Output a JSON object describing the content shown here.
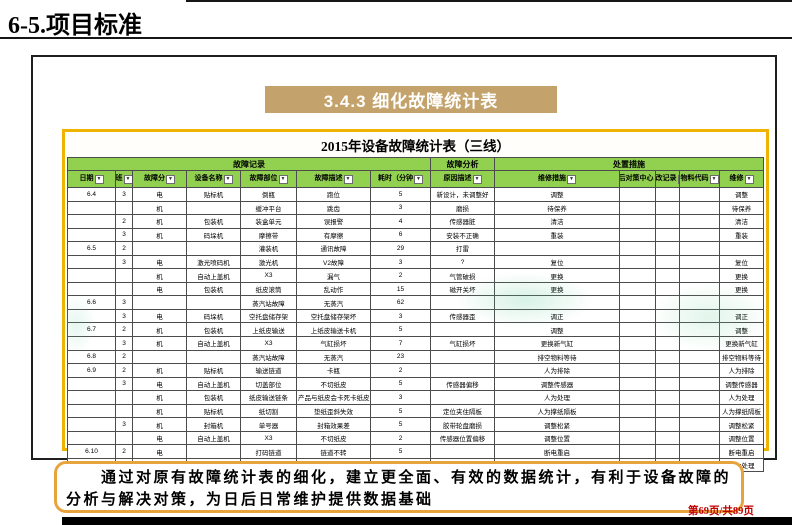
{
  "page_title": "6-5.项目标准",
  "banner": {
    "label": "3.4.3 细化故障统计表",
    "bg_color": "#c3a36b"
  },
  "colors": {
    "header_green": "#92d050",
    "table_border_gold": "#f0b400",
    "summary_border_orange": "#e8a43c",
    "page_num_red": "#c00000"
  },
  "icons": {
    "filter_dropdown": "▼"
  },
  "table": {
    "title": "2015年设备故障统计表（三线）",
    "group_headers": [
      {
        "label": "故障记录",
        "span": 7
      },
      {
        "label": "故障分析",
        "span": 1
      },
      {
        "label": "处置措施",
        "span": 5
      }
    ],
    "columns": [
      "日期",
      "班",
      "故障分",
      "设备名称",
      "故障部位",
      "故障描述",
      "耗时（分钟",
      "原因描述",
      "维修措施",
      "向后对策中心",
      "更改记录",
      "物料代码",
      "维修"
    ],
    "rows": [
      [
        "6.4",
        "3",
        "电",
        "贴标机",
        "倒瓶",
        "跑位",
        "5",
        "新设计，未调整好",
        "调整",
        "",
        "",
        "",
        "调整"
      ],
      [
        "",
        "",
        "机",
        "",
        "缓冲平台",
        "跳齿",
        "3",
        "磨损",
        "待保养",
        "",
        "",
        "",
        "待保养"
      ],
      [
        "",
        "2",
        "机",
        "包装机",
        "装盒单元",
        "误报警",
        "4",
        "传感器脏",
        "清洁",
        "",
        "",
        "",
        "清洁"
      ],
      [
        "",
        "3",
        "机",
        "码垛机",
        "摩擦带",
        "有摩擦",
        "6",
        "安装不正确",
        "重装",
        "",
        "",
        "",
        "重装"
      ],
      [
        "6.5",
        "2",
        "",
        "",
        "灌装机",
        "通讯故障",
        "29",
        "打雷",
        "",
        "",
        "",
        "",
        ""
      ],
      [
        "",
        "3",
        "电",
        "激光喷码机",
        "激光机",
        "V2故障",
        "3",
        "?",
        "复位",
        "",
        "",
        "",
        "复位"
      ],
      [
        "",
        "",
        "机",
        "自动上盖机",
        "X3",
        "漏气",
        "2",
        "气管破损",
        "更换",
        "",
        "",
        "",
        "更换"
      ],
      [
        "",
        "",
        "电",
        "包装机",
        "纸皮滚筒",
        "乱动作",
        "15",
        "磁开关坏",
        "更换",
        "",
        "",
        "",
        "更换"
      ],
      [
        "6.6",
        "3",
        "",
        "",
        "蒸汽站故障",
        "无蒸汽",
        "62",
        "",
        "",
        "",
        "",
        "",
        ""
      ],
      [
        "",
        "3",
        "电",
        "码垛机",
        "空托盘储存架",
        "空托盘储存架坏",
        "3",
        "传感器歪",
        "调正",
        "",
        "",
        "",
        "调正"
      ],
      [
        "6.7",
        "2",
        "机",
        "包装机",
        "上纸皮输送",
        "上纸皮输送卡机",
        "5",
        "",
        "调整",
        "",
        "",
        "",
        "调整"
      ],
      [
        "",
        "3",
        "机",
        "自动上盖机",
        "X3",
        "气缸损坏",
        "7",
        "气缸损坏",
        "更换新气缸",
        "",
        "",
        "",
        "更换新气缸"
      ],
      [
        "6.8",
        "2",
        "",
        "",
        "蒸汽站故障",
        "无蒸汽",
        "23",
        "",
        "排空物料等待",
        "",
        "",
        "",
        "排空物料等待"
      ],
      [
        "6.9",
        "2",
        "机",
        "贴标机",
        "输送链道",
        "卡瓶",
        "2",
        "",
        "人为排除",
        "",
        "",
        "",
        "人为排除"
      ],
      [
        "",
        "3",
        "电",
        "自动上盖机",
        "切盖部位",
        "不切纸皮",
        "5",
        "传感器偏移",
        "调整传感器",
        "",
        "",
        "",
        "调整传感器"
      ],
      [
        "",
        "",
        "机",
        "包装机",
        "纸皮输送链条",
        "产品与纸皮会卡死卡纸皮",
        "3",
        "",
        "人为处理",
        "",
        "",
        "",
        "人为处理"
      ],
      [
        "",
        "",
        "机",
        "贴标机",
        "纸切割",
        "垫纸歪斜失效",
        "5",
        "定位夹住隔板",
        "人为撑纸隔板",
        "",
        "",
        "",
        "人为撑纸隔板"
      ],
      [
        "",
        "3",
        "机",
        "封箱机",
        "单号器",
        "封箱效果差",
        "5",
        "胶带轮盘磨损",
        "调整松紧",
        "",
        "",
        "",
        "调整松紧"
      ],
      [
        "",
        "",
        "电",
        "自动上盖机",
        "X3",
        "不切纸皮",
        "2",
        "传感器位置偏移",
        "调整位置",
        "",
        "",
        "",
        "调整位置"
      ],
      [
        "6.10",
        "2",
        "电",
        "",
        "打码链道",
        "链道不转",
        "5",
        "",
        "断电重启",
        "",
        "",
        "",
        "断电重启"
      ],
      [
        "",
        "",
        "机",
        "贴标机",
        "输送链道",
        "多层单卡住",
        "5",
        "",
        "人为处理",
        "",
        "",
        "",
        "人为处理"
      ]
    ]
  },
  "summary": {
    "text": "通过对原有故障统计表的细化，建立更全面、有效的数据统计，有利于设备故障的分析与解决对策，为日后日常维护提供数据基础"
  },
  "footer": {
    "page_indicator": "第69页/共89页"
  }
}
